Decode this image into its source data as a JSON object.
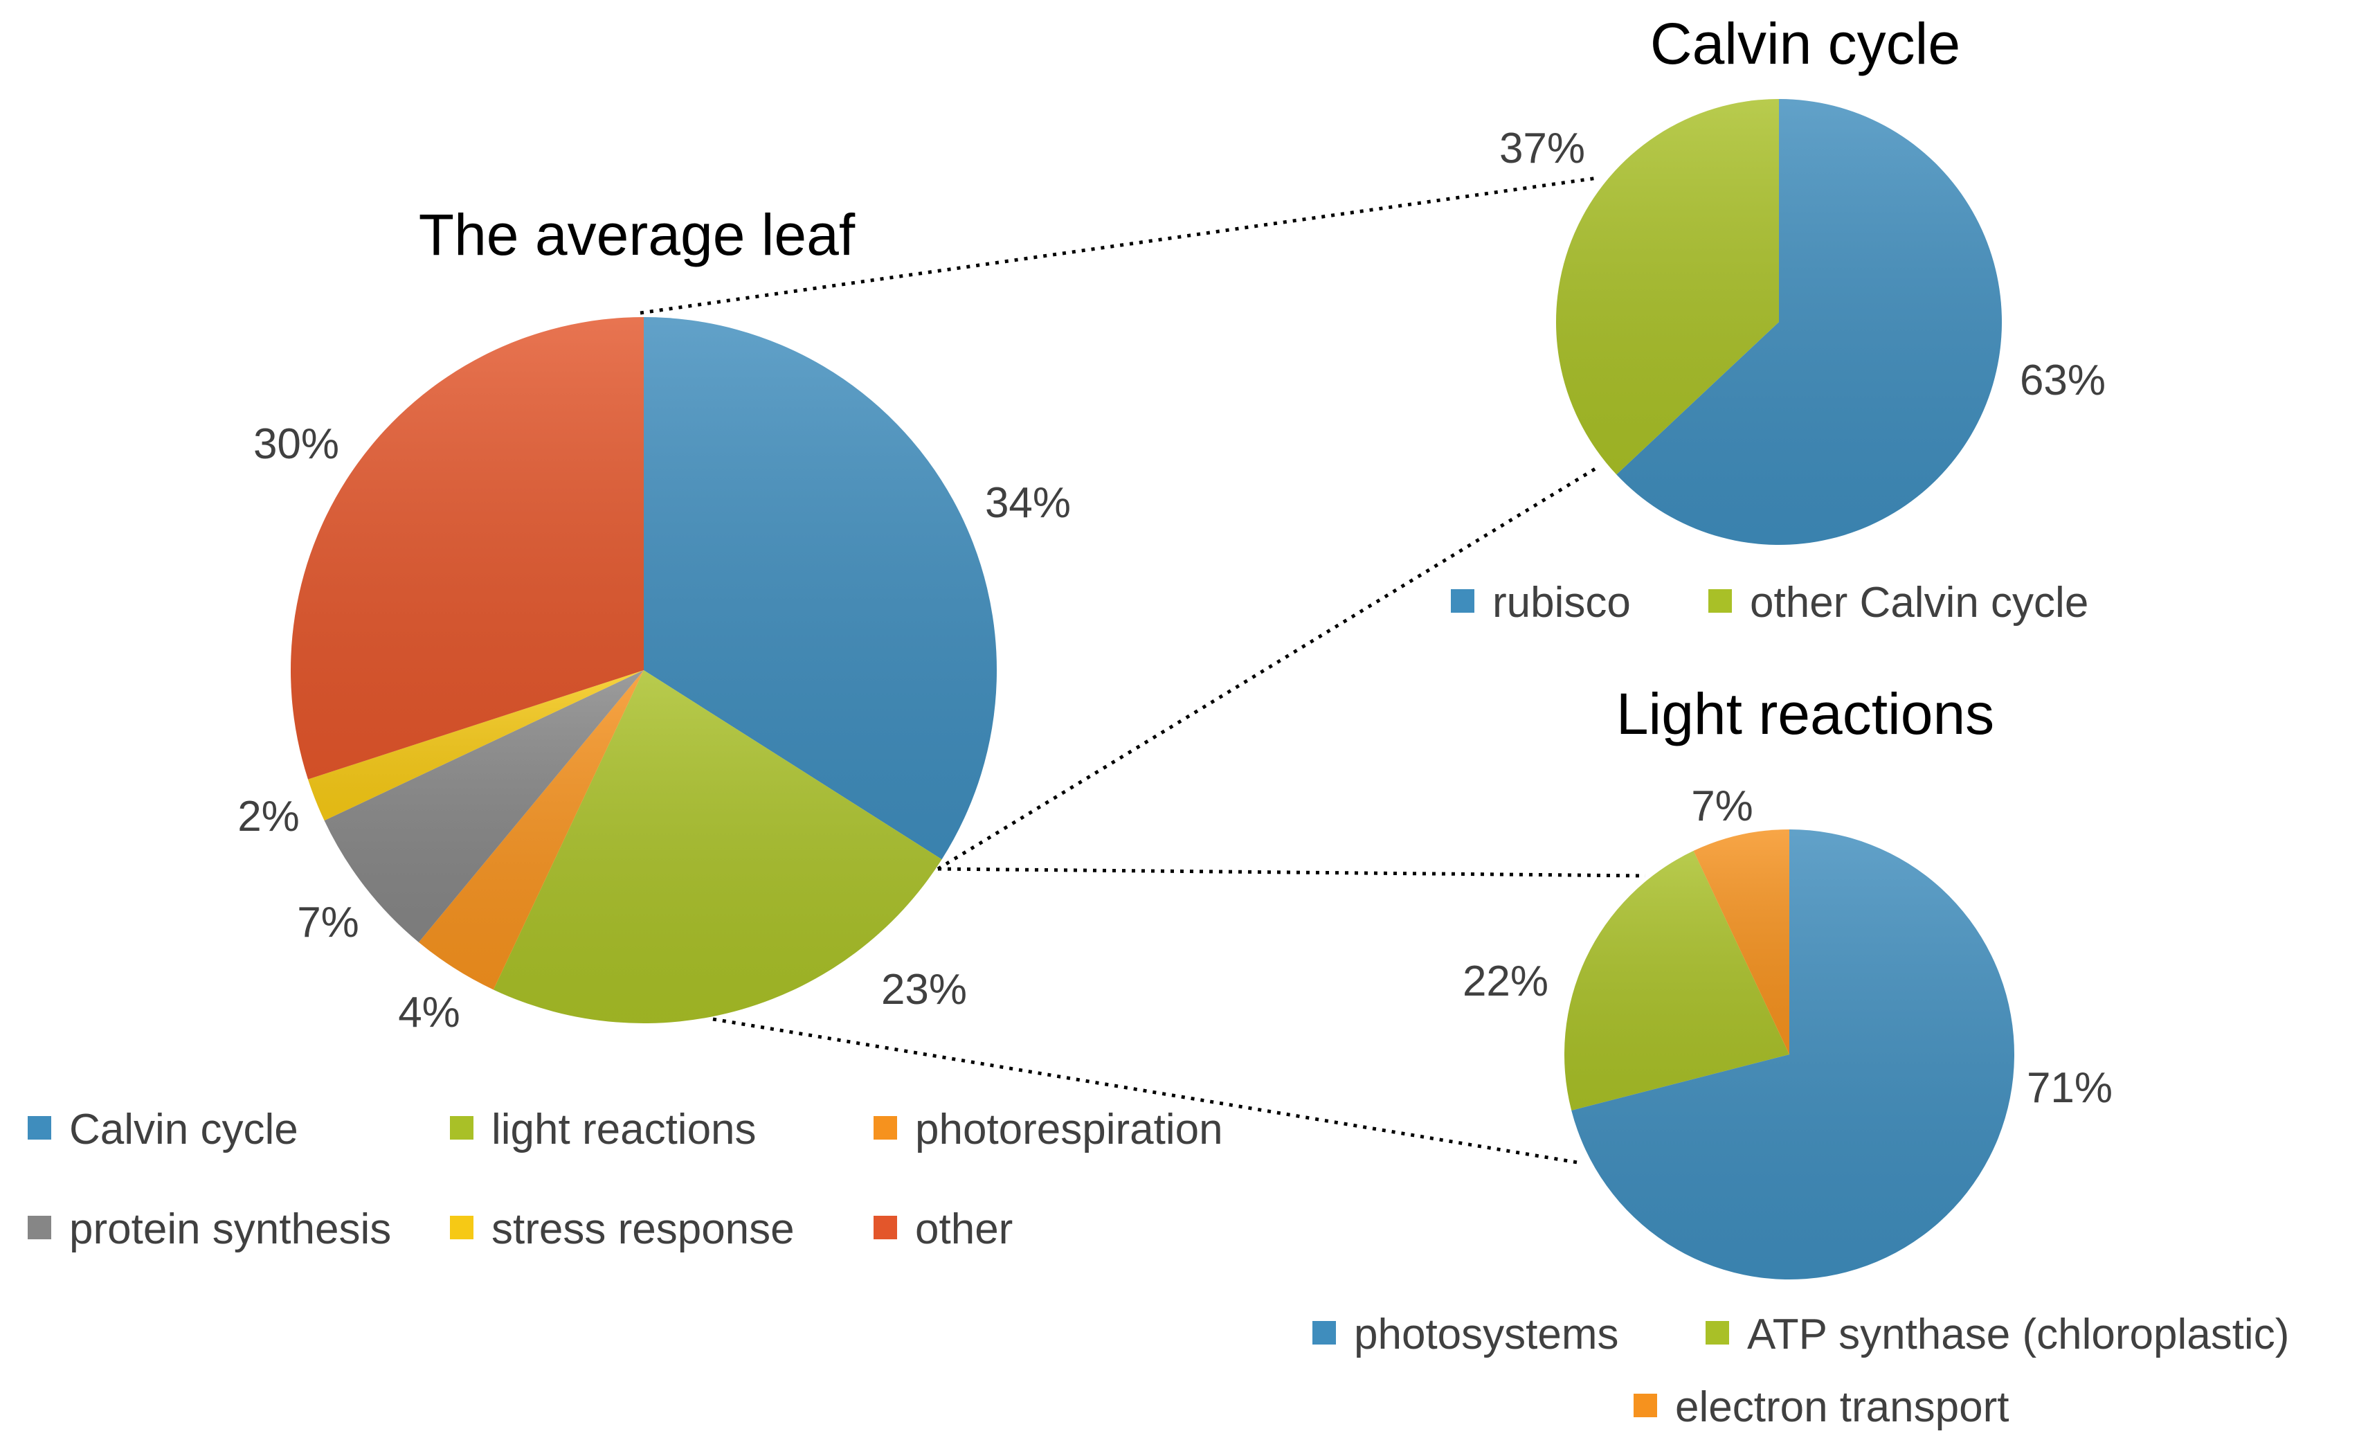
{
  "chart_data": [
    {
      "type": "pie",
      "title": "The average leaf",
      "slices": [
        {
          "label": "Calvin cycle",
          "value": 34,
          "display": "34%",
          "color": "#3f8dbd"
        },
        {
          "label": "light reactions",
          "value": 23,
          "display": "23%",
          "color": "#a9c027"
        },
        {
          "label": "photorespiration",
          "value": 4,
          "display": "4%",
          "color": "#f6921e"
        },
        {
          "label": "protein synthesis",
          "value": 7,
          "display": "7%",
          "color": "#868686"
        },
        {
          "label": "stress response",
          "value": 2,
          "display": "2%",
          "color": "#f6c915"
        },
        {
          "label": "other",
          "value": 30,
          "display": "30%",
          "color": "#e3562b"
        }
      ],
      "legend": [
        "Calvin cycle",
        "light reactions",
        "photorespiration",
        "protein synthesis",
        "stress response",
        "other"
      ],
      "legend_position": "bottom"
    },
    {
      "type": "pie",
      "title": "Calvin cycle",
      "slices": [
        {
          "label": "rubisco",
          "value": 63,
          "display": "63%",
          "color": "#3f8dbd"
        },
        {
          "label": "other Calvin cycle",
          "value": 37,
          "display": "37%",
          "color": "#a9c027"
        }
      ],
      "legend": [
        "rubisco",
        "other Calvin cycle"
      ],
      "legend_position": "bottom"
    },
    {
      "type": "pie",
      "title": "Light reactions",
      "slices": [
        {
          "label": "photosystems",
          "value": 71,
          "display": "71%",
          "color": "#3f8dbd"
        },
        {
          "label": "ATP synthase (chloroplastic)",
          "value": 22,
          "display": "22%",
          "color": "#a9c027"
        },
        {
          "label": "electron transport",
          "value": 7,
          "display": "7%",
          "color": "#f6921e"
        }
      ],
      "legend": [
        "photosystems",
        "ATP synthase (chloroplastic)",
        "electron transport"
      ],
      "legend_position": "bottom"
    }
  ]
}
